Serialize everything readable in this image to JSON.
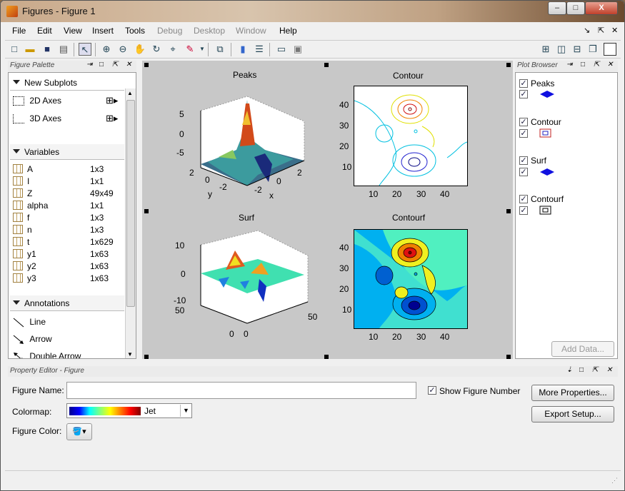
{
  "window": {
    "title": "Figures - Figure 1",
    "min": "–",
    "max": "□",
    "close": "X"
  },
  "menu": [
    "File",
    "Edit",
    "View",
    "Insert",
    "Tools",
    "Debug",
    "Desktop",
    "Window",
    "Help"
  ],
  "menu_disabled": [
    "Debug",
    "Desktop",
    "Window"
  ],
  "menubar_right": {
    "dock": "↘",
    "undock": "⇱",
    "close": "✕"
  },
  "palette": {
    "title": "Figure Palette",
    "new_subplots": "New Subplots",
    "axes2d": "2D Axes",
    "axes3d": "3D Axes",
    "variables_label": "Variables",
    "variables": [
      {
        "name": "A",
        "size": "1x3"
      },
      {
        "name": "I",
        "size": "1x1"
      },
      {
        "name": "Z",
        "size": "49x49"
      },
      {
        "name": "alpha",
        "size": "1x1"
      },
      {
        "name": "f",
        "size": "1x3"
      },
      {
        "name": "n",
        "size": "1x3"
      },
      {
        "name": "t",
        "size": "1x629"
      },
      {
        "name": "y1",
        "size": "1x63"
      },
      {
        "name": "y2",
        "size": "1x63"
      },
      {
        "name": "y3",
        "size": "1x63"
      }
    ],
    "annotations_label": "Annotations",
    "annotations": [
      "Line",
      "Arrow",
      "Double Arrow"
    ]
  },
  "figure": {
    "peaks": {
      "title": "Peaks",
      "zticks": [
        "5",
        "0",
        "-5"
      ],
      "yticks": [
        "2",
        "0",
        "-2"
      ],
      "xticks": [
        "-2",
        "0",
        "2"
      ],
      "xlabel": "x",
      "ylabel": "y"
    },
    "contour": {
      "title": "Contour",
      "yticks": [
        "40",
        "30",
        "20",
        "10"
      ],
      "xticks": [
        "10",
        "20",
        "30",
        "40"
      ]
    },
    "surf": {
      "title": "Surf",
      "zticks": [
        "10",
        "0",
        "-10"
      ],
      "ticks_a": [
        "50",
        "0"
      ],
      "ticks_b": [
        "0",
        "50"
      ]
    },
    "contourf": {
      "title": "Contourf",
      "yticks": [
        "40",
        "30",
        "20",
        "10"
      ],
      "xticks": [
        "10",
        "20",
        "30",
        "40"
      ]
    }
  },
  "browser": {
    "title": "Plot Browser",
    "items": [
      {
        "label": "Peaks",
        "color": "#1010e0"
      },
      {
        "label": "Contour",
        "color": "#c02020"
      },
      {
        "label": "Surf",
        "color": "#1010e0"
      },
      {
        "label": "Contourf",
        "color": "#000000"
      }
    ],
    "add_data": "Add Data..."
  },
  "prop": {
    "title": "Property Editor - Figure",
    "figure_name_label": "Figure Name:",
    "figure_name_value": "",
    "show_number": "Show Figure Number",
    "colormap_label": "Colormap:",
    "colormap_value": "Jet",
    "figure_color_label": "Figure Color:",
    "more_props": "More Properties...",
    "export_setup": "Export Setup..."
  }
}
